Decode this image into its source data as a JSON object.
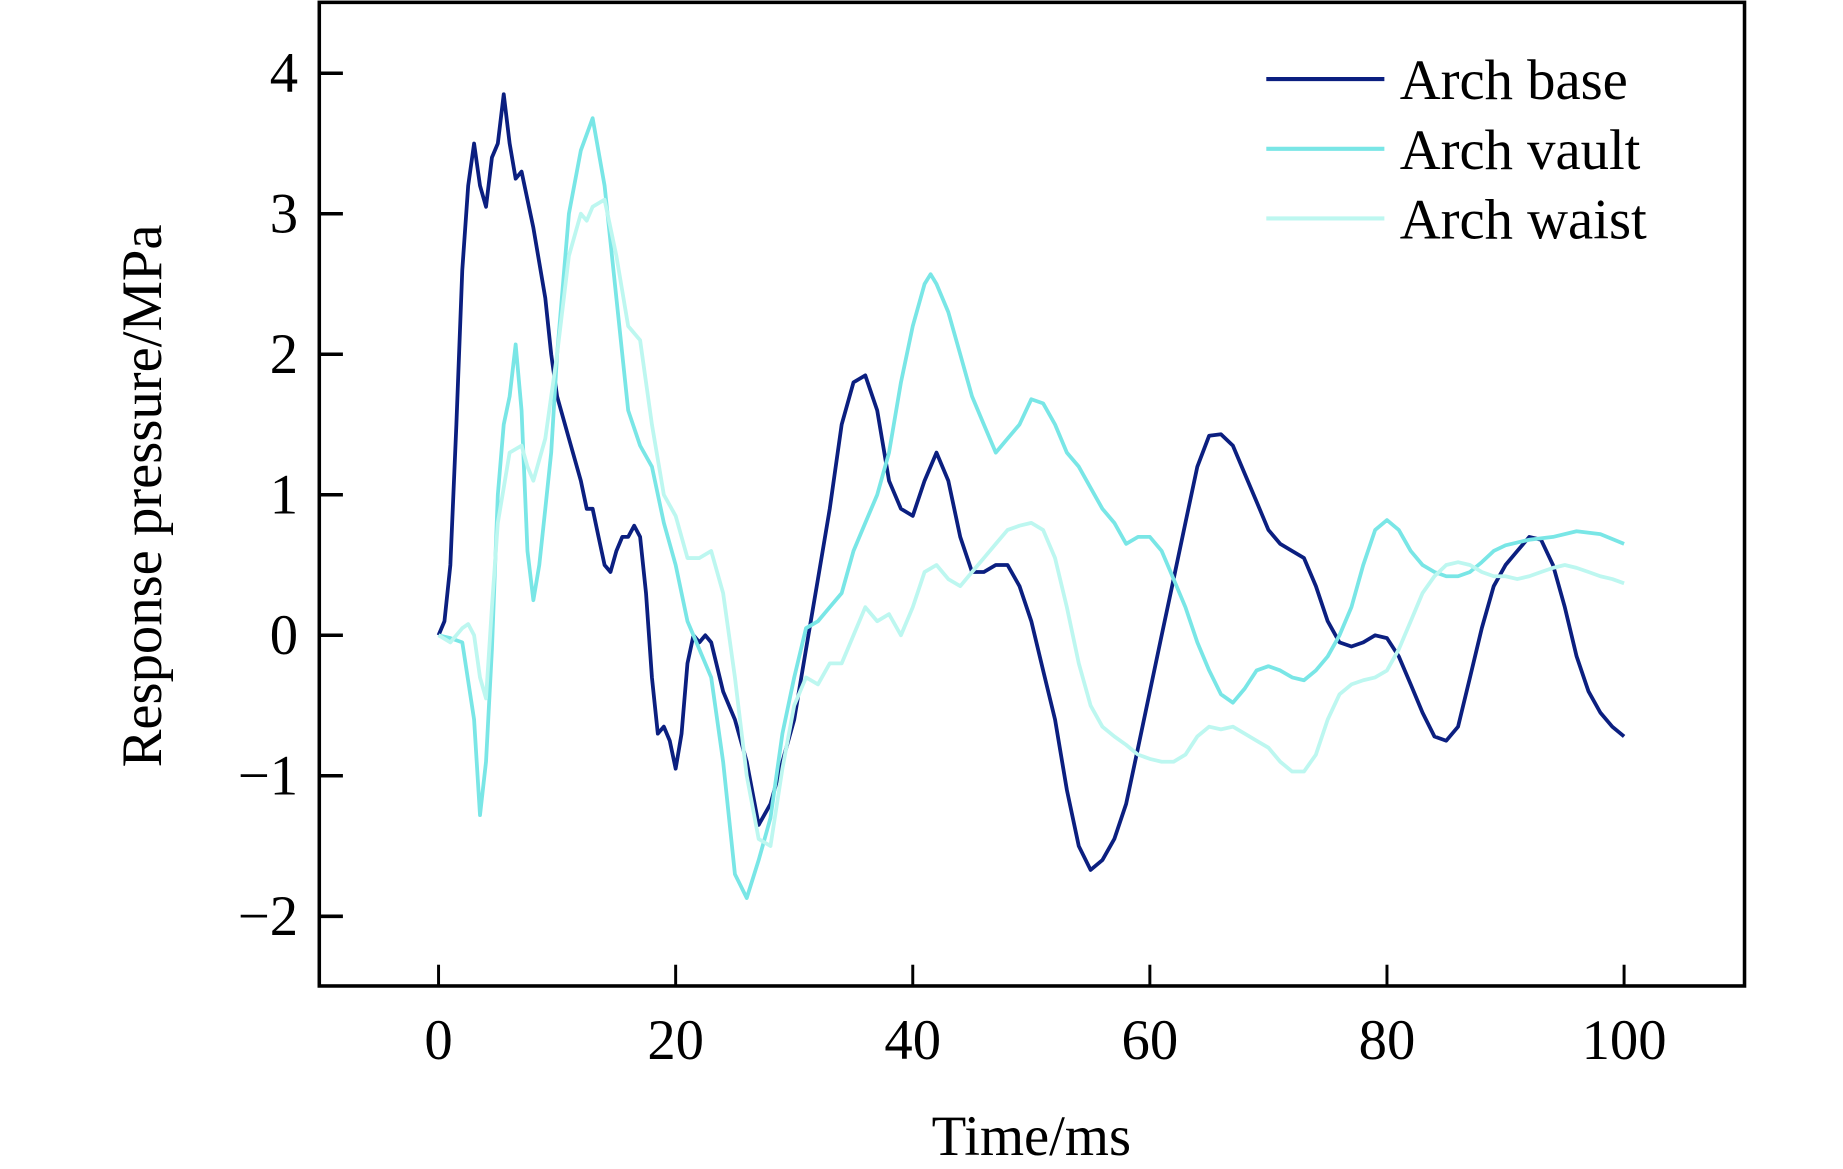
{
  "chart_data": {
    "type": "line",
    "xlabel": "Time/ms",
    "ylabel": "Response pressure/MPa",
    "xlim": [
      -10,
      110
    ],
    "ylim": [
      -2.5,
      4.5
    ],
    "xticks": [
      0,
      20,
      40,
      60,
      80,
      100
    ],
    "yticks": [
      4,
      3,
      2,
      1,
      0,
      -1,
      -2
    ],
    "ytick_labels": [
      "4",
      "3",
      "2",
      "1",
      "0",
      "−1",
      "−2"
    ],
    "xtick_labels": [
      "0",
      "20",
      "40",
      "60",
      "80",
      "100"
    ],
    "grid": false,
    "legend_position": "top-right",
    "series": [
      {
        "name": "Arch base",
        "color": "#0b1f80",
        "x": [
          0,
          0.5,
          1,
          1.5,
          2,
          2.5,
          3,
          3.5,
          4,
          4.5,
          5,
          5.5,
          6,
          6.5,
          7,
          8,
          9,
          9.5,
          10,
          11,
          12,
          12.5,
          13,
          13.5,
          14,
          14.5,
          15,
          15.5,
          16,
          16.5,
          17,
          17.5,
          18,
          18.5,
          19,
          19.5,
          20,
          20.5,
          21,
          21.5,
          22,
          22.5,
          23,
          24,
          25,
          26,
          27,
          28,
          29,
          30,
          31,
          32,
          33,
          34,
          35,
          36,
          37,
          38,
          39,
          40,
          41,
          42,
          43,
          44,
          45,
          46,
          47,
          48,
          49,
          50,
          51,
          52,
          53,
          54,
          55,
          56,
          57,
          58,
          59,
          60,
          61,
          62,
          63,
          64,
          65,
          66,
          67,
          68,
          69,
          70,
          71,
          72,
          73,
          74,
          75,
          76,
          77,
          78,
          79,
          80,
          81,
          82,
          83,
          84,
          85,
          86,
          87,
          88,
          89,
          90,
          91,
          92,
          93,
          94,
          95,
          96,
          97,
          98,
          99,
          100
        ],
        "y": [
          0,
          0.1,
          0.5,
          1.5,
          2.6,
          3.2,
          3.5,
          3.2,
          3.05,
          3.4,
          3.5,
          3.85,
          3.5,
          3.25,
          3.3,
          2.9,
          2.4,
          2.0,
          1.7,
          1.4,
          1.1,
          0.9,
          0.9,
          0.7,
          0.5,
          0.45,
          0.6,
          0.7,
          0.7,
          0.78,
          0.7,
          0.3,
          -0.3,
          -0.7,
          -0.65,
          -0.75,
          -0.95,
          -0.7,
          -0.2,
          0.0,
          -0.05,
          0.0,
          -0.05,
          -0.4,
          -0.6,
          -0.9,
          -1.35,
          -1.2,
          -0.9,
          -0.6,
          -0.1,
          0.4,
          0.9,
          1.5,
          1.8,
          1.85,
          1.6,
          1.1,
          0.9,
          0.85,
          1.1,
          1.3,
          1.1,
          0.7,
          0.45,
          0.45,
          0.5,
          0.5,
          0.35,
          0.1,
          -0.25,
          -0.6,
          -1.1,
          -1.5,
          -1.67,
          -1.6,
          -1.45,
          -1.2,
          -0.8,
          -0.4,
          0.0,
          0.4,
          0.8,
          1.2,
          1.42,
          1.43,
          1.35,
          1.15,
          0.95,
          0.75,
          0.65,
          0.6,
          0.55,
          0.35,
          0.1,
          -0.05,
          -0.08,
          -0.05,
          0.0,
          -0.02,
          -0.15,
          -0.35,
          -0.55,
          -0.72,
          -0.75,
          -0.65,
          -0.3,
          0.05,
          0.35,
          0.5,
          0.6,
          0.7,
          0.68,
          0.5,
          0.2,
          -0.15,
          -0.4,
          -0.55,
          -0.65,
          -0.72
        ]
      },
      {
        "name": "Arch vault",
        "color": "#79e6e6",
        "x": [
          0,
          1,
          2,
          3,
          3.5,
          4,
          4.5,
          5,
          5.5,
          6,
          6.5,
          7,
          7.5,
          8,
          8.5,
          9,
          9.5,
          10,
          11,
          12,
          13,
          14,
          15,
          16,
          17,
          18,
          19,
          20,
          21,
          22,
          23,
          24,
          25,
          26,
          27,
          28,
          29,
          30,
          31,
          32,
          33,
          34,
          35,
          36,
          37,
          38,
          39,
          40,
          41,
          41.5,
          42,
          43,
          44,
          45,
          46,
          47,
          48,
          49,
          50,
          51,
          52,
          53,
          54,
          55,
          56,
          57,
          58,
          59,
          60,
          61,
          62,
          63,
          64,
          65,
          66,
          67,
          68,
          69,
          70,
          71,
          72,
          73,
          74,
          75,
          76,
          77,
          78,
          79,
          80,
          81,
          82,
          83,
          84,
          85,
          86,
          87,
          88,
          89,
          90,
          92,
          94,
          96,
          98,
          100
        ],
        "y": [
          0,
          -0.02,
          -0.05,
          -0.6,
          -1.28,
          -0.9,
          -0.1,
          1.0,
          1.5,
          1.7,
          2.07,
          1.6,
          0.6,
          0.25,
          0.5,
          0.9,
          1.3,
          2.0,
          3.0,
          3.45,
          3.68,
          3.2,
          2.4,
          1.6,
          1.35,
          1.2,
          0.8,
          0.5,
          0.1,
          -0.1,
          -0.3,
          -0.9,
          -1.7,
          -1.87,
          -1.6,
          -1.3,
          -0.7,
          -0.3,
          0.05,
          0.1,
          0.2,
          0.3,
          0.6,
          0.8,
          1.0,
          1.3,
          1.8,
          2.2,
          2.5,
          2.57,
          2.5,
          2.3,
          2.0,
          1.7,
          1.5,
          1.3,
          1.4,
          1.5,
          1.68,
          1.65,
          1.5,
          1.3,
          1.2,
          1.05,
          0.9,
          0.8,
          0.65,
          0.7,
          0.7,
          0.6,
          0.4,
          0.2,
          -0.05,
          -0.25,
          -0.42,
          -0.48,
          -0.38,
          -0.25,
          -0.22,
          -0.25,
          -0.3,
          -0.32,
          -0.25,
          -0.15,
          0.0,
          0.2,
          0.5,
          0.75,
          0.82,
          0.75,
          0.6,
          0.5,
          0.45,
          0.42,
          0.42,
          0.45,
          0.52,
          0.6,
          0.64,
          0.68,
          0.7,
          0.74,
          0.72,
          0.65
        ]
      },
      {
        "name": "Arch waist",
        "color": "#bdf7f0",
        "x": [
          0,
          1,
          2,
          2.5,
          3,
          3.5,
          4,
          4.5,
          5,
          5.5,
          6,
          7,
          7.5,
          8,
          9,
          10,
          11,
          12,
          12.5,
          13,
          14,
          15,
          16,
          17,
          18,
          19,
          20,
          21,
          22,
          23,
          24,
          25,
          26,
          27,
          28,
          29,
          30,
          31,
          32,
          33,
          34,
          35,
          36,
          37,
          38,
          39,
          40,
          41,
          42,
          43,
          44,
          45,
          46,
          47,
          48,
          49,
          50,
          51,
          52,
          53,
          54,
          55,
          56,
          57,
          58,
          59,
          60,
          61,
          62,
          63,
          64,
          65,
          66,
          67,
          68,
          69,
          70,
          71,
          72,
          73,
          74,
          75,
          76,
          77,
          78,
          79,
          80,
          81,
          82,
          83,
          84,
          85,
          86,
          87,
          88,
          89,
          90,
          91,
          92,
          93,
          94,
          95,
          96,
          97,
          98,
          99,
          100
        ],
        "y": [
          0,
          -0.05,
          0.05,
          0.08,
          0.0,
          -0.3,
          -0.45,
          0.2,
          0.8,
          1.05,
          1.3,
          1.35,
          1.2,
          1.1,
          1.4,
          2.0,
          2.7,
          3.0,
          2.95,
          3.05,
          3.1,
          2.7,
          2.2,
          2.1,
          1.5,
          1.0,
          0.85,
          0.55,
          0.55,
          0.6,
          0.3,
          -0.3,
          -1.0,
          -1.45,
          -1.5,
          -0.95,
          -0.5,
          -0.3,
          -0.35,
          -0.2,
          -0.2,
          0.0,
          0.2,
          0.1,
          0.15,
          0.0,
          0.2,
          0.45,
          0.5,
          0.4,
          0.35,
          0.45,
          0.55,
          0.65,
          0.75,
          0.78,
          0.8,
          0.75,
          0.55,
          0.2,
          -0.2,
          -0.5,
          -0.65,
          -0.72,
          -0.78,
          -0.85,
          -0.88,
          -0.9,
          -0.9,
          -0.85,
          -0.72,
          -0.65,
          -0.67,
          -0.65,
          -0.7,
          -0.75,
          -0.8,
          -0.9,
          -0.97,
          -0.97,
          -0.85,
          -0.6,
          -0.42,
          -0.35,
          -0.32,
          -0.3,
          -0.25,
          -0.1,
          0.1,
          0.3,
          0.42,
          0.5,
          0.52,
          0.5,
          0.45,
          0.42,
          0.42,
          0.4,
          0.42,
          0.45,
          0.48,
          0.5,
          0.48,
          0.45,
          0.42,
          0.4,
          0.37
        ]
      }
    ]
  }
}
